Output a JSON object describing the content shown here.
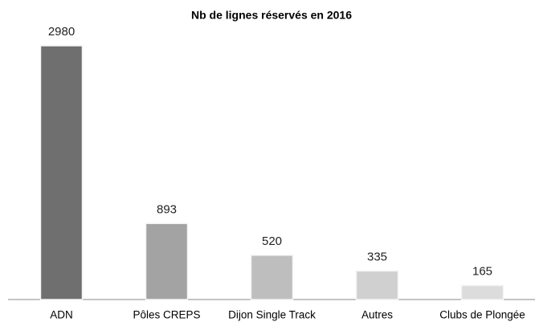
{
  "chart_data": {
    "type": "bar",
    "title": "Nb de lignes réservés en 2016",
    "categories": [
      "ADN",
      "Pôles CREPS",
      "Dijon Single Track",
      "Autres",
      "Clubs de Plongée"
    ],
    "values": [
      2980,
      893,
      520,
      335,
      165
    ],
    "colors": [
      "#6f6f6f",
      "#a3a3a3",
      "#bebebe",
      "#d0d0d0",
      "#dcdcdc"
    ]
  }
}
